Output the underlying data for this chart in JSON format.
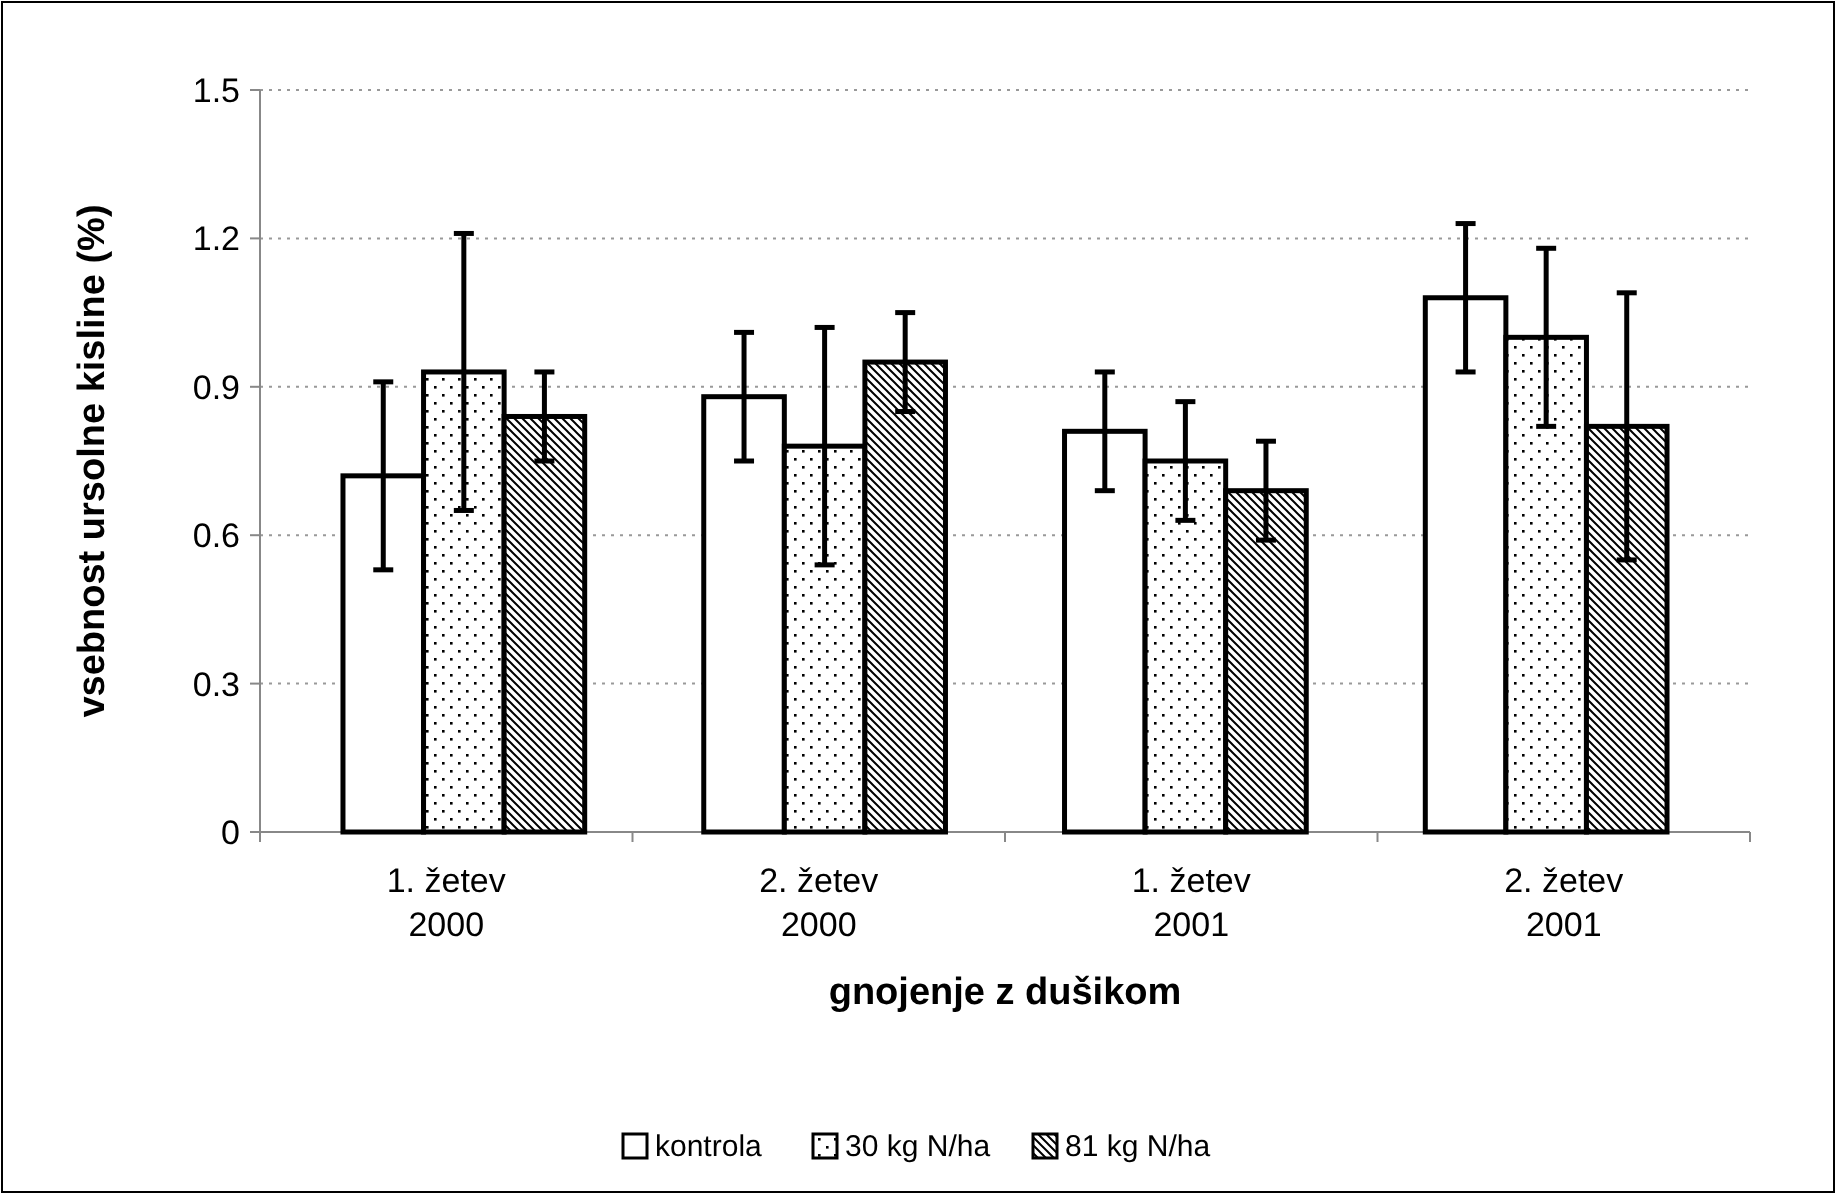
{
  "chart_data": {
    "type": "bar",
    "xlabel": "gnojenje z dušikom",
    "ylabel": "vsebnost ursolne kisline (%)",
    "categories": [
      "1. žetev 2000",
      "2. žetev 2000",
      "1. žetev 2001",
      "2. žetev 2001"
    ],
    "series": [
      {
        "name": "kontrola",
        "color": "#ffffff",
        "values": [
          0.72,
          0.88,
          0.81,
          1.08
        ],
        "errors": [
          0.19,
          0.13,
          0.12,
          0.15
        ]
      },
      {
        "name": "30 kg N/ha",
        "color": "#000000",
        "values": [
          0.93,
          0.78,
          0.75,
          1.0
        ],
        "errors": [
          0.28,
          0.24,
          0.12,
          0.18
        ]
      },
      {
        "name": "81 kg N/ha",
        "color": "#000000",
        "values": [
          0.84,
          0.95,
          0.69,
          0.82
        ],
        "errors": [
          0.09,
          0.1,
          0.1,
          0.27
        ]
      }
    ],
    "ylim": [
      0,
      1.5
    ],
    "yticks": [
      {
        "value": 0,
        "label": "0"
      },
      0.3,
      0.6,
      0.9,
      1.2,
      1.5
    ],
    "grid": "y",
    "legend": "bottom"
  }
}
